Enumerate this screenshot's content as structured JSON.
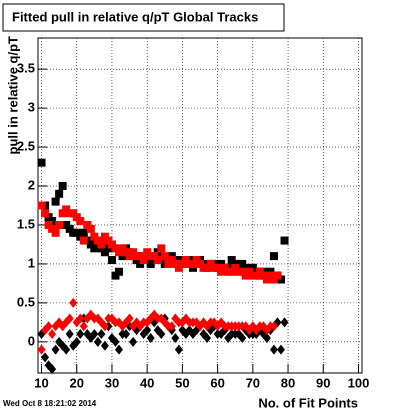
{
  "chart_data": {
    "type": "scatter",
    "title": "Fitted pull in relative q/pT  Global Tracks",
    "x_label": "No. of Fit Points",
    "y_label": "pull in relative q/pT",
    "timestamp": "Wed Oct  8 18:21:02 2014",
    "x": [
      10,
      11,
      12,
      13,
      14,
      15,
      16,
      17,
      18,
      19,
      20,
      21,
      22,
      23,
      24,
      25,
      26,
      27,
      28,
      29,
      30,
      31,
      32,
      33,
      34,
      35,
      36,
      37,
      38,
      39,
      40,
      41,
      42,
      43,
      44,
      45,
      46,
      47,
      48,
      49,
      50,
      51,
      52,
      53,
      54,
      55,
      56,
      57,
      58,
      59,
      60,
      61,
      62,
      63,
      64,
      65,
      66,
      67,
      68,
      69,
      70,
      71,
      72,
      73,
      74,
      75,
      76,
      77,
      78,
      79
    ],
    "series": [
      {
        "color": "#000000",
        "marker": "square",
        "values": [
          2.3,
          1.75,
          1.6,
          1.55,
          1.8,
          1.9,
          2.0,
          1.5,
          1.45,
          1.4,
          1.4,
          1.35,
          1.4,
          1.3,
          1.25,
          1.2,
          1.3,
          1.2,
          1.15,
          1.2,
          1.05,
          0.85,
          0.9,
          1.1,
          1.2,
          1.15,
          1.1,
          1.05,
          1.0,
          1.1,
          1.05,
          1.0,
          1.1,
          1.15,
          1.05,
          1.0,
          1.05,
          1.1,
          1.05,
          1.0,
          1.05,
          1.0,
          1.05,
          0.95,
          1.0,
          1.05,
          1.0,
          0.95,
          1.0,
          1.0,
          0.95,
          1.0,
          0.95,
          0.95,
          1.05,
          1.0,
          0.95,
          1.0,
          0.95,
          0.9,
          0.95,
          0.9,
          0.85,
          0.9,
          0.85,
          0.9,
          1.1,
          0.85,
          0.8,
          1.3
        ]
      },
      {
        "color": "#ff0000",
        "marker": "square",
        "values": [
          1.75,
          1.65,
          1.5,
          1.45,
          1.4,
          1.5,
          1.65,
          1.7,
          1.65,
          1.65,
          1.6,
          1.55,
          1.3,
          1.5,
          1.45,
          1.35,
          1.3,
          1.25,
          1.35,
          1.3,
          1.25,
          1.2,
          1.15,
          1.2,
          1.15,
          1.1,
          1.15,
          1.1,
          1.1,
          1.05,
          1.15,
          1.1,
          1.1,
          1.05,
          1.2,
          1.1,
          1.0,
          1.05,
          1.0,
          0.95,
          1.0,
          1.05,
          1.0,
          1.0,
          1.05,
          1.0,
          0.95,
          0.95,
          1.0,
          0.95,
          0.95,
          0.9,
          0.95,
          0.9,
          0.9,
          0.95,
          0.9,
          0.9,
          0.85,
          0.9,
          0.85,
          0.85,
          0.9,
          0.85,
          0.8,
          0.85,
          0.8,
          0.85,
          null,
          null
        ]
      },
      {
        "color": "#000000",
        "marker": "diamond",
        "values": [
          0.1,
          -0.2,
          -0.3,
          -0.35,
          -0.1,
          0.0,
          -0.05,
          -0.1,
          0.1,
          -0.05,
          0.0,
          0.1,
          0.3,
          0.1,
          0.05,
          0.1,
          0.0,
          0.1,
          -0.05,
          0.2,
          0.05,
          0.0,
          -0.1,
          0.1,
          0.1,
          0.2,
          0.0,
          0.15,
          0.2,
          0.1,
          0.15,
          0.05,
          0.25,
          0.15,
          0.1,
          0.3,
          0.2,
          0.15,
          0.05,
          -0.1,
          0.15,
          0.1,
          0.15,
          0.1,
          0.15,
          0.2,
          0.1,
          0.05,
          0.15,
          0.2,
          0.1,
          0.1,
          0.15,
          0.05,
          0.1,
          0.1,
          0.1,
          0.05,
          0.15,
          0.1,
          0.1,
          0.1,
          0.15,
          0.1,
          0.05,
          0.15,
          -0.1,
          0.25,
          -0.1,
          0.25
        ]
      },
      {
        "color": "#ff0000",
        "marker": "diamond",
        "values": [
          -0.1,
          0.15,
          0.2,
          0.1,
          0.2,
          0.25,
          0.2,
          0.25,
          0.3,
          0.5,
          0.25,
          0.3,
          0.2,
          0.3,
          0.35,
          0.3,
          0.3,
          0.25,
          0.2,
          0.3,
          0.3,
          0.25,
          0.25,
          0.2,
          0.25,
          0.3,
          0.2,
          0.25,
          0.2,
          0.25,
          0.25,
          0.3,
          0.35,
          0.3,
          0.3,
          0.25,
          0.2,
          0.2,
          0.3,
          0.25,
          0.25,
          0.3,
          0.25,
          0.25,
          0.25,
          0.2,
          0.25,
          0.2,
          0.25,
          0.25,
          0.2,
          0.25,
          0.2,
          0.2,
          0.2,
          0.2,
          0.2,
          0.2,
          0.2,
          0.15,
          0.2,
          0.15,
          0.2,
          0.2,
          0.15,
          0.2,
          0.2,
          null,
          null,
          null
        ]
      }
    ],
    "xlim": [
      9,
      101
    ],
    "xticks": [
      10,
      20,
      30,
      40,
      50,
      60,
      70,
      80,
      90,
      100
    ],
    "ylim": [
      -0.4,
      3.9
    ],
    "yticks": [
      0,
      0.5,
      1,
      1.5,
      2,
      2.5,
      3,
      3.5
    ],
    "grid": true
  }
}
